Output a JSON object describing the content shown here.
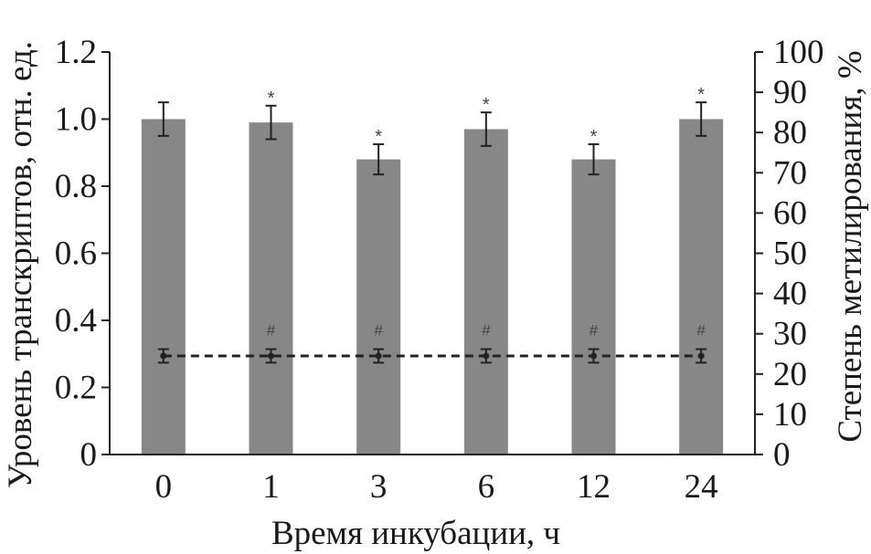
{
  "chart_data": {
    "type": "bar",
    "categories": [
      "0",
      "1",
      "3",
      "6",
      "12",
      "24"
    ],
    "xlabel": "Время инкубации, ч",
    "ylabel": "Уровень транскриптов, отн. ед.",
    "y2label": "Степень метилирования, %",
    "ylim": [
      0,
      1.2
    ],
    "y2lim": [
      0,
      100
    ],
    "yticks": [
      "0",
      "0.2",
      "0.4",
      "0.6",
      "0.8",
      "1.0",
      "1.2"
    ],
    "y2ticks": [
      "0",
      "10",
      "20",
      "30",
      "40",
      "50",
      "60",
      "70",
      "80",
      "90",
      "100"
    ],
    "series": [
      {
        "kind": "bar",
        "axis": "left",
        "values": [
          1.0,
          0.99,
          0.88,
          0.97,
          0.88,
          1.0
        ],
        "errors": [
          0.05,
          0.05,
          0.045,
          0.05,
          0.045,
          0.05
        ],
        "markers": [
          "",
          "*",
          "*",
          "*",
          "*",
          "*"
        ],
        "color": "#878787"
      },
      {
        "kind": "line",
        "axis": "right",
        "style": "dashed",
        "values": [
          24.5,
          24.5,
          24.5,
          24.5,
          24.5,
          24.5
        ],
        "errors": [
          1.0,
          1.0,
          1.0,
          1.0,
          1.0,
          1.0
        ],
        "markers": [
          "",
          "#",
          "#",
          "#",
          "#",
          "#"
        ],
        "color": "#222222"
      }
    ],
    "grid": false,
    "legend": "none"
  }
}
